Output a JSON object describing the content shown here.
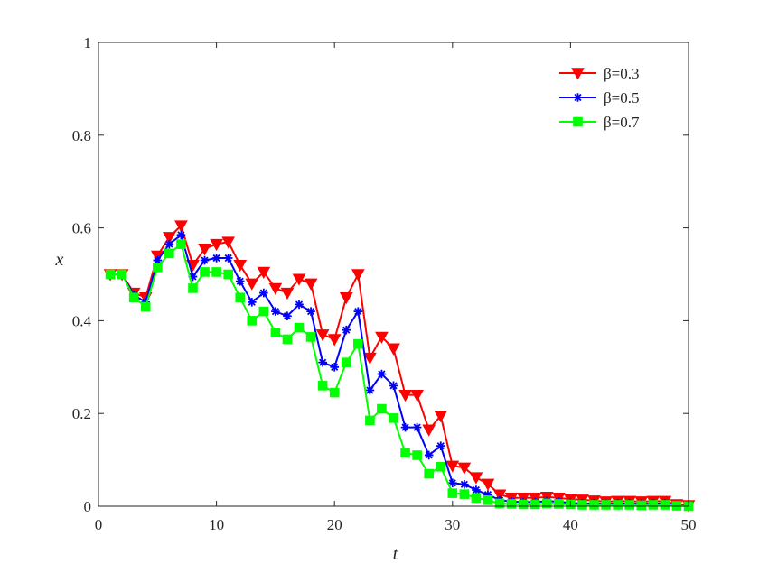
{
  "chart_data": {
    "type": "line",
    "xlabel": "t",
    "ylabel": "x",
    "xlim": [
      0,
      50
    ],
    "ylim": [
      0,
      1
    ],
    "xticks": [
      0,
      10,
      20,
      30,
      40,
      50
    ],
    "yticks": [
      0,
      0.2,
      0.4,
      0.6,
      0.8,
      1
    ],
    "ytick_labels": [
      "0",
      "0.2",
      "0.4",
      "0.6",
      "0.8",
      "1"
    ],
    "grid": false,
    "legend_position": "top-right",
    "x": [
      1,
      2,
      3,
      4,
      5,
      6,
      7,
      8,
      9,
      10,
      11,
      12,
      13,
      14,
      15,
      16,
      17,
      18,
      19,
      20,
      21,
      22,
      23,
      24,
      25,
      26,
      27,
      28,
      29,
      30,
      31,
      32,
      33,
      34,
      35,
      36,
      37,
      38,
      39,
      40,
      41,
      42,
      43,
      44,
      45,
      46,
      47,
      48,
      49,
      50
    ],
    "series": [
      {
        "name": "β=0.3",
        "color": "#ff0000",
        "marker": "triangle-down",
        "values": [
          0.5,
          0.5,
          0.46,
          0.45,
          0.54,
          0.58,
          0.605,
          0.52,
          0.555,
          0.565,
          0.57,
          0.52,
          0.48,
          0.505,
          0.47,
          0.46,
          0.49,
          0.48,
          0.37,
          0.36,
          0.45,
          0.5,
          0.32,
          0.365,
          0.34,
          0.24,
          0.24,
          0.165,
          0.195,
          0.087,
          0.083,
          0.062,
          0.048,
          0.025,
          0.018,
          0.018,
          0.018,
          0.02,
          0.018,
          0.015,
          0.014,
          0.012,
          0.01,
          0.011,
          0.011,
          0.01,
          0.011,
          0.011,
          0.004,
          0.002
        ]
      },
      {
        "name": "β=0.5",
        "color": "#0000ff",
        "marker": "asterisk",
        "values": [
          0.5,
          0.5,
          0.455,
          0.44,
          0.53,
          0.565,
          0.585,
          0.495,
          0.53,
          0.535,
          0.535,
          0.485,
          0.44,
          0.46,
          0.42,
          0.41,
          0.435,
          0.42,
          0.31,
          0.3,
          0.38,
          0.42,
          0.25,
          0.285,
          0.26,
          0.17,
          0.17,
          0.11,
          0.13,
          0.05,
          0.047,
          0.035,
          0.025,
          0.013,
          0.01,
          0.009,
          0.009,
          0.011,
          0.01,
          0.007,
          0.006,
          0.006,
          0.005,
          0.006,
          0.006,
          0.005,
          0.006,
          0.006,
          0.002,
          0.001
        ]
      },
      {
        "name": "β=0.7",
        "color": "#00ff00",
        "marker": "square",
        "values": [
          0.5,
          0.5,
          0.45,
          0.43,
          0.515,
          0.545,
          0.565,
          0.47,
          0.505,
          0.505,
          0.5,
          0.45,
          0.4,
          0.42,
          0.375,
          0.36,
          0.385,
          0.365,
          0.26,
          0.245,
          0.31,
          0.35,
          0.185,
          0.21,
          0.19,
          0.115,
          0.11,
          0.07,
          0.085,
          0.028,
          0.026,
          0.018,
          0.013,
          0.006,
          0.005,
          0.004,
          0.004,
          0.006,
          0.005,
          0.004,
          0.003,
          0.003,
          0.003,
          0.003,
          0.003,
          0.002,
          0.003,
          0.003,
          0.001,
          0.0
        ]
      }
    ]
  }
}
